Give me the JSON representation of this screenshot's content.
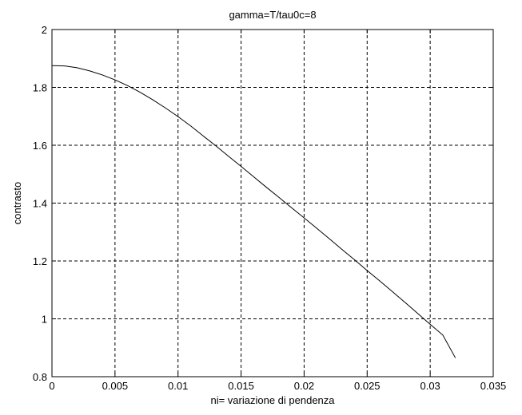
{
  "chart_data": {
    "type": "line",
    "title": "gamma=T/tau0c=8",
    "xlabel": "ni= variazione di pendenza",
    "ylabel": "contrasto",
    "xlim": [
      0,
      0.035
    ],
    "ylim": [
      0.8,
      2.0
    ],
    "xticks": [
      0,
      0.005,
      0.01,
      0.015,
      0.02,
      0.025,
      0.03,
      0.035
    ],
    "xtick_labels": [
      "0",
      "0.005",
      "0.01",
      "0.015",
      "0.02",
      "0.025",
      "0.03",
      "0.035"
    ],
    "yticks": [
      0.8,
      1.0,
      1.2,
      1.4,
      1.6,
      1.8,
      2.0
    ],
    "ytick_labels": [
      "0.8",
      "1",
      "1.2",
      "1.4",
      "1.6",
      "1.8",
      "2"
    ],
    "grid": true,
    "grid_style": "dashed",
    "line_color": "#000000",
    "series": [
      {
        "x": [
          0,
          0.001,
          0.002,
          0.003,
          0.004,
          0.005,
          0.006,
          0.007,
          0.008,
          0.009,
          0.01,
          0.011,
          0.012,
          0.013,
          0.014,
          0.015,
          0.016,
          0.017,
          0.018,
          0.019,
          0.02,
          0.021,
          0.022,
          0.023,
          0.024,
          0.025,
          0.026,
          0.027,
          0.028,
          0.029,
          0.03,
          0.031,
          0.032
        ],
        "y": [
          1.875,
          1.874,
          1.868,
          1.857,
          1.843,
          1.826,
          1.806,
          1.783,
          1.757,
          1.729,
          1.699,
          1.667,
          1.632,
          1.598,
          1.562,
          1.527,
          1.491,
          1.455,
          1.42,
          1.384,
          1.349,
          1.313,
          1.277,
          1.24,
          1.204,
          1.167,
          1.131,
          1.094,
          1.057,
          1.019,
          0.981,
          0.944,
          0.865
        ]
      }
    ]
  }
}
